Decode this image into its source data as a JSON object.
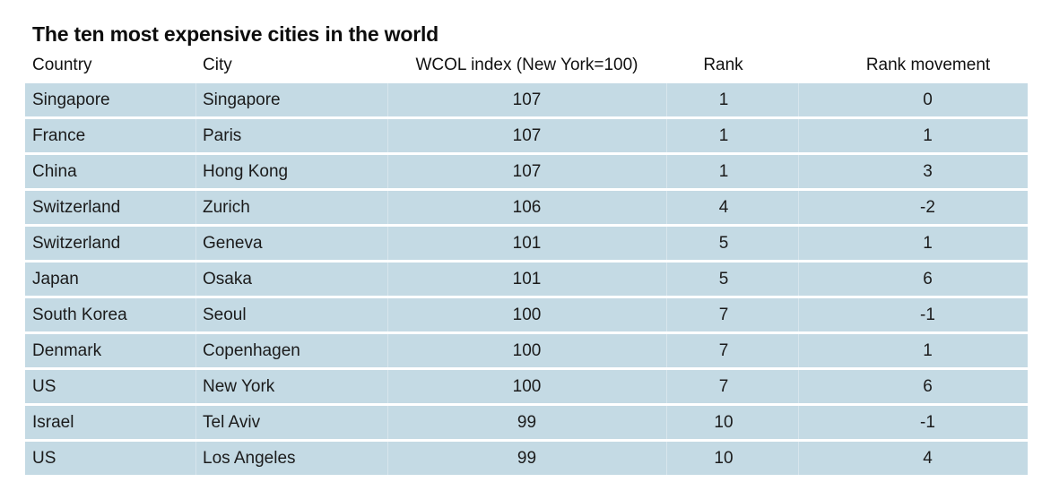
{
  "title": "The ten most expensive cities in the world",
  "colors": {
    "row_background": "#c4dae4",
    "column_separator": "#d7e5ec",
    "text": "#1b1b1b",
    "title_text": "#0d0d0d",
    "page_background": "#ffffff"
  },
  "chart_data": {
    "type": "table",
    "title": "The ten most expensive cities in the world",
    "columns": [
      "Country",
      "City",
      "WCOL index (New York=100)",
      "Rank",
      "Rank movement"
    ],
    "rows": [
      [
        "Singapore",
        "Singapore",
        107,
        1,
        0
      ],
      [
        "France",
        "Paris",
        107,
        1,
        1
      ],
      [
        "China",
        "Hong Kong",
        107,
        1,
        3
      ],
      [
        "Switzerland",
        "Zurich",
        106,
        4,
        -2
      ],
      [
        "Switzerland",
        "Geneva",
        101,
        5,
        1
      ],
      [
        "Japan",
        "Osaka",
        101,
        5,
        6
      ],
      [
        "South Korea",
        "Seoul",
        100,
        7,
        -1
      ],
      [
        "Denmark",
        "Copenhagen",
        100,
        7,
        1
      ],
      [
        "US",
        "New York",
        100,
        7,
        6
      ],
      [
        "Israel",
        "Tel Aviv",
        99,
        10,
        -1
      ],
      [
        "US",
        "Los Angeles",
        99,
        10,
        4
      ]
    ],
    "layout": {
      "index_base_note": "New York=100",
      "row_band_color": "#c4dae4",
      "alignment": [
        "left",
        "left",
        "center",
        "center",
        "center"
      ]
    }
  }
}
